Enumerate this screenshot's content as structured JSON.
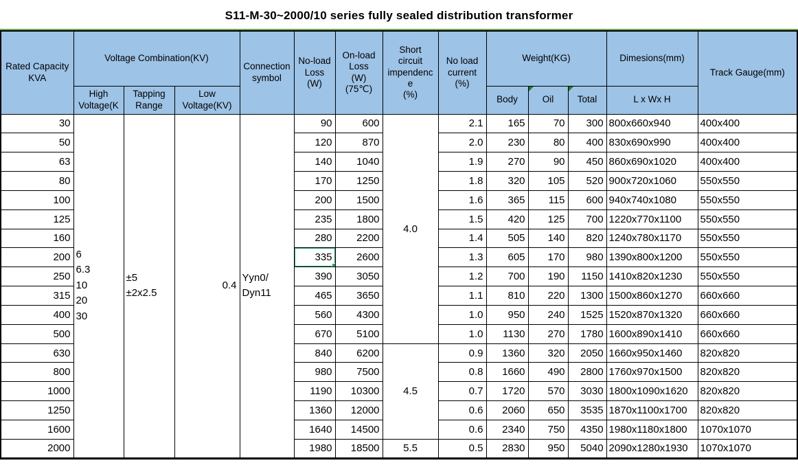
{
  "title": "S11-M-30~2000/10 series fully sealed distribution transformer",
  "colors": {
    "header_bg": "#9DC3E6",
    "grid": "#000000",
    "top_gridline_green": "#6AA84F",
    "selection_green": "#21A366",
    "comment_triangle_green": "#1E7B34"
  },
  "table": {
    "header": {
      "col_rated": "Rated Capacity\nKVA",
      "col_voltage_comb": "Voltage Combination(KV)",
      "col_high_voltage": "High\nVoltage(K",
      "col_tapping": "Tapping\nRange",
      "col_low_voltage": "Low\nVoltage(KV)",
      "col_connection": "Connection\nsymbol",
      "col_noload_loss": "No-load\nLoss\n(W)",
      "col_onload_loss": "On-load\nLoss\n(W)\n(75℃)",
      "col_impedance": "Short\ncircuit\nimpendenc\ne\n(%)",
      "col_noload_current": "No load\ncurrent\n(%)",
      "col_weight": "Weight(KG)",
      "col_body": "Body",
      "col_oil": "Oil",
      "col_total": "Total",
      "col_dimensions": "Dimesions(mm)",
      "col_lwh": "L x Wx H",
      "col_track": "Track Gauge(mm)"
    },
    "merged": {
      "high_voltage": "6\n6.3\n10\n20\n30",
      "tapping_range": "±5\n±2x2.5",
      "low_voltage": "0.4",
      "connection_symbol": "Yyn0/\nDyn11"
    },
    "impedance_groups": [
      {
        "value": "4.0",
        "rows": 12
      },
      {
        "value": "4.5",
        "rows": 5
      },
      {
        "value": "5.5",
        "rows": 1
      }
    ],
    "rows": [
      {
        "kva": "30",
        "noload_loss": "90",
        "onload_loss": "600",
        "noload_current": "2.1",
        "body": "165",
        "oil": "70",
        "total": "300",
        "dimensions": "800x660x940",
        "track": "400x400"
      },
      {
        "kva": "50",
        "noload_loss": "120",
        "onload_loss": "870",
        "noload_current": "2.0",
        "body": "230",
        "oil": "80",
        "total": "400",
        "dimensions": "830x690x990",
        "track": "400x400"
      },
      {
        "kva": "63",
        "noload_loss": "140",
        "onload_loss": "1040",
        "noload_current": "1.9",
        "body": "270",
        "oil": "90",
        "total": "450",
        "dimensions": "860x690x1020",
        "track": "400x400"
      },
      {
        "kva": "80",
        "noload_loss": "170",
        "onload_loss": "1250",
        "noload_current": "1.8",
        "body": "320",
        "oil": "105",
        "total": "520",
        "dimensions": "900x720x1060",
        "track": "550x550"
      },
      {
        "kva": "100",
        "noload_loss": "200",
        "onload_loss": "1500",
        "noload_current": "1.6",
        "body": "365",
        "oil": "115",
        "total": "600",
        "dimensions": "940x740x1080",
        "track": "550x550"
      },
      {
        "kva": "125",
        "noload_loss": "235",
        "onload_loss": "1800",
        "noload_current": "1.5",
        "body": "420",
        "oil": "125",
        "total": "700",
        "dimensions": "1220x770x1100",
        "track": "550x550"
      },
      {
        "kva": "160",
        "noload_loss": "280",
        "onload_loss": "2200",
        "noload_current": "1.4",
        "body": "505",
        "oil": "140",
        "total": "820",
        "dimensions": "1240x780x1170",
        "track": "550x550"
      },
      {
        "kva": "200",
        "noload_loss": "335",
        "onload_loss": "2600",
        "noload_current": "1.3",
        "body": "605",
        "oil": "170",
        "total": "980",
        "dimensions": "1390x800x1200",
        "track": "550x550"
      },
      {
        "kva": "250",
        "noload_loss": "390",
        "onload_loss": "3050",
        "noload_current": "1.2",
        "body": "700",
        "oil": "190",
        "total": "1150",
        "dimensions": "1410x820x1230",
        "track": "550x550"
      },
      {
        "kva": "315",
        "noload_loss": "465",
        "onload_loss": "3650",
        "noload_current": "1.1",
        "body": "810",
        "oil": "220",
        "total": "1300",
        "dimensions": "1500x860x1270",
        "track": "660x660"
      },
      {
        "kva": "400",
        "noload_loss": "560",
        "onload_loss": "4300",
        "noload_current": "1.0",
        "body": "950",
        "oil": "240",
        "total": "1525",
        "dimensions": "1520x870x1320",
        "track": "660x660"
      },
      {
        "kva": "500",
        "noload_loss": "670",
        "onload_loss": "5100",
        "noload_current": "1.0",
        "body": "1130",
        "oil": "270",
        "total": "1780",
        "dimensions": "1600x890x1410",
        "track": "660x660"
      },
      {
        "kva": "630",
        "noload_loss": "840",
        "onload_loss": "6200",
        "noload_current": "0.9",
        "body": "1360",
        "oil": "320",
        "total": "2050",
        "dimensions": "1660x950x1460",
        "track": "820x820"
      },
      {
        "kva": "800",
        "noload_loss": "980",
        "onload_loss": "7500",
        "noload_current": "0.8",
        "body": "1660",
        "oil": "490",
        "total": "2800",
        "dimensions": "1760x970x1500",
        "track": "820x820"
      },
      {
        "kva": "1000",
        "noload_loss": "1190",
        "onload_loss": "10300",
        "noload_current": "0.7",
        "body": "1720",
        "oil": "570",
        "total": "3030",
        "dimensions": "1800x1090x1620",
        "track": "820x820"
      },
      {
        "kva": "1250",
        "noload_loss": "1360",
        "onload_loss": "12000",
        "noload_current": "0.6",
        "body": "2060",
        "oil": "650",
        "total": "3535",
        "dimensions": "1870x1100x1700",
        "track": "820x820"
      },
      {
        "kva": "1600",
        "noload_loss": "1640",
        "onload_loss": "14500",
        "noload_current": "0.6",
        "body": "2340",
        "oil": "750",
        "total": "4350",
        "dimensions": "1980x1180x1800",
        "track": "1070x1070"
      },
      {
        "kva": "2000",
        "noload_loss": "1980",
        "onload_loss": "18500",
        "noload_current": "0.5",
        "body": "2830",
        "oil": "950",
        "total": "5040",
        "dimensions": "2090x1280x1930",
        "track": "1070x1070"
      }
    ],
    "selected_cell": {
      "row_kva": "200",
      "column": "noload_loss",
      "value": "335"
    }
  }
}
